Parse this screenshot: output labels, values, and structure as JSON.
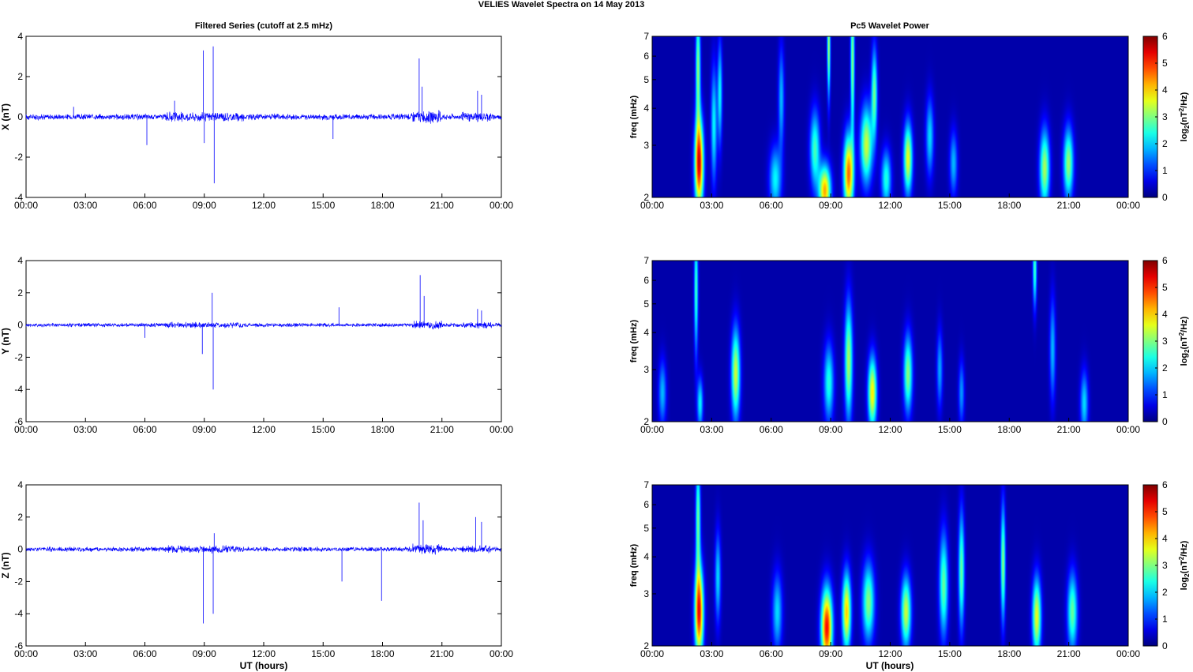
{
  "suptitle": "VELIES Wavelet Spectra on 14 May       2013",
  "left_title": "Filtered Series (cutoff at 2.5 mHz)",
  "right_title": "Pc5 Wavelet Power",
  "xlabel": "UT (hours)",
  "time_ticks": [
    "00:00",
    "03:00",
    "06:00",
    "09:00",
    "12:00",
    "15:00",
    "18:00",
    "21:00",
    "00:00"
  ],
  "freq_label": "freq (mHz)",
  "freq_ticks": [
    "2",
    "3",
    "4",
    "5",
    "6",
    "7"
  ],
  "colorbar_label": "log2(nT^2/Hz)",
  "colorbar_ticks": [
    "0",
    "1",
    "2",
    "3",
    "4",
    "5",
    "6"
  ],
  "colors": {
    "series": "#0000ff",
    "axes": "#000000",
    "map_background": "#00008f"
  },
  "chart_data": [
    {
      "type": "line",
      "component": "X",
      "ylabel": "X (nT)",
      "ylim": [
        -4,
        4
      ],
      "yticks": [
        "4",
        "2",
        "0",
        "-2",
        "-4"
      ],
      "xlim_hours": [
        0,
        24
      ],
      "noise_amplitude": 0.12,
      "spikes": [
        {
          "t": 2.4,
          "v": 0.5
        },
        {
          "t": 6.1,
          "v": -1.4
        },
        {
          "t": 7.5,
          "v": 0.8
        },
        {
          "t": 8.95,
          "v": 3.3
        },
        {
          "t": 9.0,
          "v": -1.3
        },
        {
          "t": 9.45,
          "v": 3.5
        },
        {
          "t": 9.5,
          "v": -3.3
        },
        {
          "t": 15.5,
          "v": -1.1
        },
        {
          "t": 19.85,
          "v": 2.9
        },
        {
          "t": 20.0,
          "v": 1.5
        },
        {
          "t": 22.8,
          "v": 1.3
        },
        {
          "t": 23.0,
          "v": 1.1
        }
      ]
    },
    {
      "type": "line",
      "component": "Y",
      "ylabel": "Y (nT)",
      "ylim": [
        -6,
        4
      ],
      "yticks": [
        "4",
        "2",
        "0",
        "-2",
        "-4",
        "-6"
      ],
      "xlim_hours": [
        0,
        24
      ],
      "noise_amplitude": 0.1,
      "spikes": [
        {
          "t": 6.0,
          "v": -0.8
        },
        {
          "t": 8.9,
          "v": -1.8
        },
        {
          "t": 9.4,
          "v": 2.0
        },
        {
          "t": 9.45,
          "v": -4.0
        },
        {
          "t": 15.8,
          "v": 1.1
        },
        {
          "t": 19.9,
          "v": 3.1
        },
        {
          "t": 20.1,
          "v": 1.8
        },
        {
          "t": 22.8,
          "v": 1.0
        },
        {
          "t": 23.0,
          "v": 0.9
        }
      ]
    },
    {
      "type": "line",
      "component": "Z",
      "ylabel": "Z (nT)",
      "ylim": [
        -6,
        4
      ],
      "yticks": [
        "4",
        "2",
        "0",
        "-2",
        "-4",
        "-6"
      ],
      "xlim_hours": [
        0,
        24
      ],
      "noise_amplitude": 0.12,
      "spikes": [
        {
          "t": 8.95,
          "v": -4.6
        },
        {
          "t": 9.45,
          "v": -4.0
        },
        {
          "t": 9.5,
          "v": 1.0
        },
        {
          "t": 15.95,
          "v": -2.0
        },
        {
          "t": 17.95,
          "v": -3.2
        },
        {
          "t": 19.85,
          "v": 2.9
        },
        {
          "t": 20.05,
          "v": 1.8
        },
        {
          "t": 22.7,
          "v": 2.0
        },
        {
          "t": 23.0,
          "v": 1.7
        }
      ]
    },
    {
      "type": "heatmap",
      "component": "X",
      "scale": "log-frequency",
      "ylim_mhz": [
        2,
        7
      ],
      "zlim": [
        0,
        6
      ],
      "xlim_hours": [
        0,
        24
      ],
      "blobs": [
        {
          "t": 2.35,
          "f": 2.6,
          "w": 0.22,
          "h": 0.7,
          "p": 5.2
        },
        {
          "t": 2.3,
          "f": 5.5,
          "w": 0.12,
          "h": 0.9,
          "p": 2.8
        },
        {
          "t": 3.1,
          "f": 3.5,
          "w": 0.15,
          "h": 0.9,
          "p": 2.0
        },
        {
          "t": 3.4,
          "f": 4.5,
          "w": 0.12,
          "h": 0.8,
          "p": 2.0
        },
        {
          "t": 6.2,
          "f": 2.3,
          "w": 0.3,
          "h": 0.5,
          "p": 2.0
        },
        {
          "t": 6.5,
          "f": 4.3,
          "w": 0.15,
          "h": 0.8,
          "p": 1.6
        },
        {
          "t": 8.2,
          "f": 2.9,
          "w": 0.25,
          "h": 0.6,
          "p": 2.4
        },
        {
          "t": 8.7,
          "f": 2.1,
          "w": 0.3,
          "h": 0.4,
          "p": 4.0
        },
        {
          "t": 8.9,
          "f": 6.5,
          "w": 0.08,
          "h": 0.8,
          "p": 3.0
        },
        {
          "t": 9.9,
          "f": 2.4,
          "w": 0.25,
          "h": 0.6,
          "p": 4.4
        },
        {
          "t": 10.1,
          "f": 5.8,
          "w": 0.1,
          "h": 1.2,
          "p": 2.8
        },
        {
          "t": 10.8,
          "f": 3.0,
          "w": 0.3,
          "h": 0.6,
          "p": 3.2
        },
        {
          "t": 11.2,
          "f": 4.5,
          "w": 0.15,
          "h": 0.7,
          "p": 2.6
        },
        {
          "t": 11.8,
          "f": 2.3,
          "w": 0.25,
          "h": 0.45,
          "p": 2.2
        },
        {
          "t": 12.9,
          "f": 2.7,
          "w": 0.22,
          "h": 0.55,
          "p": 3.4
        },
        {
          "t": 14.0,
          "f": 3.2,
          "w": 0.2,
          "h": 0.6,
          "p": 1.8
        },
        {
          "t": 15.2,
          "f": 2.6,
          "w": 0.2,
          "h": 0.5,
          "p": 1.6
        },
        {
          "t": 19.8,
          "f": 2.5,
          "w": 0.25,
          "h": 0.6,
          "p": 3.0
        },
        {
          "t": 21.0,
          "f": 2.6,
          "w": 0.25,
          "h": 0.55,
          "p": 2.9
        }
      ]
    },
    {
      "type": "heatmap",
      "component": "Y",
      "scale": "log-frequency",
      "ylim_mhz": [
        2,
        7
      ],
      "zlim": [
        0,
        6
      ],
      "xlim_hours": [
        0,
        24
      ],
      "blobs": [
        {
          "t": 0.5,
          "f": 2.5,
          "w": 0.2,
          "h": 0.5,
          "p": 1.6
        },
        {
          "t": 2.2,
          "f": 5.6,
          "w": 0.1,
          "h": 1.0,
          "p": 2.4
        },
        {
          "t": 2.4,
          "f": 2.3,
          "w": 0.15,
          "h": 0.4,
          "p": 2.0
        },
        {
          "t": 4.2,
          "f": 2.9,
          "w": 0.22,
          "h": 0.7,
          "p": 3.2
        },
        {
          "t": 8.9,
          "f": 2.7,
          "w": 0.25,
          "h": 0.6,
          "p": 2.2
        },
        {
          "t": 9.9,
          "f": 3.2,
          "w": 0.2,
          "h": 0.9,
          "p": 3.0
        },
        {
          "t": 11.1,
          "f": 2.5,
          "w": 0.22,
          "h": 0.55,
          "p": 3.6
        },
        {
          "t": 12.9,
          "f": 2.9,
          "w": 0.22,
          "h": 0.6,
          "p": 2.8
        },
        {
          "t": 14.5,
          "f": 3.0,
          "w": 0.15,
          "h": 0.6,
          "p": 1.5
        },
        {
          "t": 15.6,
          "f": 2.5,
          "w": 0.15,
          "h": 0.5,
          "p": 1.4
        },
        {
          "t": 19.3,
          "f": 6.6,
          "w": 0.1,
          "h": 0.6,
          "p": 2.4
        },
        {
          "t": 20.2,
          "f": 3.5,
          "w": 0.15,
          "h": 0.8,
          "p": 1.6
        },
        {
          "t": 21.8,
          "f": 2.3,
          "w": 0.2,
          "h": 0.5,
          "p": 1.8
        }
      ]
    },
    {
      "type": "heatmap",
      "component": "Z",
      "scale": "log-frequency",
      "ylim_mhz": [
        2,
        7
      ],
      "zlim": [
        0,
        6
      ],
      "xlim_hours": [
        0,
        24
      ],
      "blobs": [
        {
          "t": 2.35,
          "f": 2.6,
          "w": 0.22,
          "h": 0.7,
          "p": 5.0
        },
        {
          "t": 2.3,
          "f": 5.4,
          "w": 0.12,
          "h": 0.9,
          "p": 2.6
        },
        {
          "t": 3.3,
          "f": 3.4,
          "w": 0.15,
          "h": 0.7,
          "p": 1.8
        },
        {
          "t": 6.3,
          "f": 2.6,
          "w": 0.25,
          "h": 0.6,
          "p": 1.8
        },
        {
          "t": 8.8,
          "f": 2.3,
          "w": 0.28,
          "h": 0.6,
          "p": 5.0
        },
        {
          "t": 9.8,
          "f": 2.6,
          "w": 0.22,
          "h": 0.6,
          "p": 3.8
        },
        {
          "t": 10.9,
          "f": 2.8,
          "w": 0.3,
          "h": 0.6,
          "p": 2.8
        },
        {
          "t": 12.8,
          "f": 2.6,
          "w": 0.25,
          "h": 0.55,
          "p": 3.2
        },
        {
          "t": 14.7,
          "f": 3.2,
          "w": 0.22,
          "h": 0.8,
          "p": 2.6
        },
        {
          "t": 15.6,
          "f": 3.6,
          "w": 0.15,
          "h": 0.9,
          "p": 2.6
        },
        {
          "t": 17.7,
          "f": 3.8,
          "w": 0.12,
          "h": 0.9,
          "p": 2.8
        },
        {
          "t": 19.4,
          "f": 2.5,
          "w": 0.22,
          "h": 0.6,
          "p": 3.4
        },
        {
          "t": 21.2,
          "f": 2.6,
          "w": 0.25,
          "h": 0.6,
          "p": 2.6
        }
      ]
    }
  ]
}
